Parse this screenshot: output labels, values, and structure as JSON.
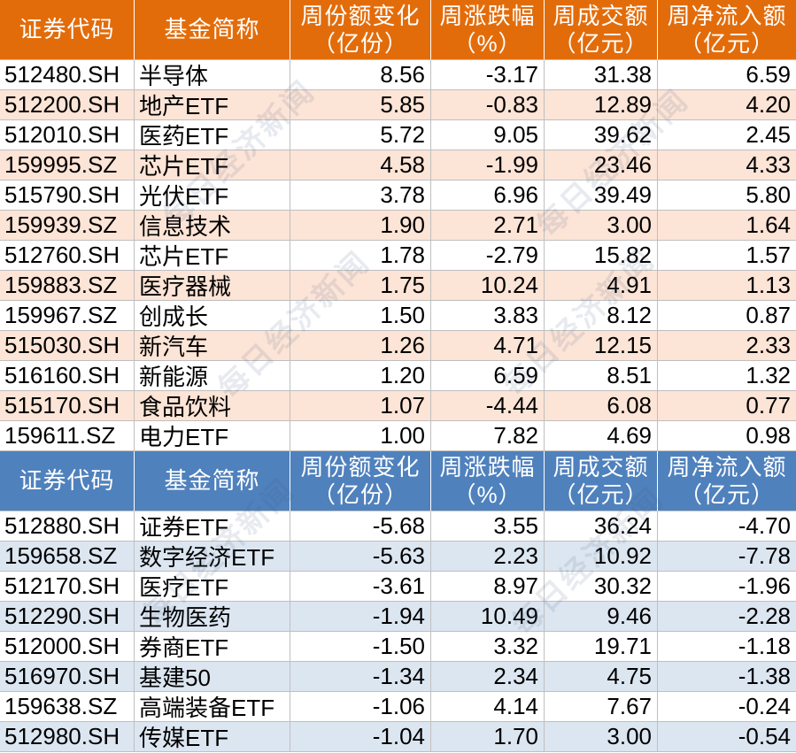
{
  "watermark": "每日经济新闻",
  "chart_data": [
    {
      "type": "table",
      "header_color": "#E36C0A",
      "stripe_color": "#FCE4D6",
      "columns": [
        {
          "line1": "证券代码"
        },
        {
          "line1": "基金简称"
        },
        {
          "line1": "周份额变化",
          "line2": "（亿份）"
        },
        {
          "line1": "周涨跌幅",
          "line2": "（%）"
        },
        {
          "line1": "周成交额",
          "line2": "（亿元）"
        },
        {
          "line1": "周净流入额",
          "line2": "（亿元）"
        }
      ],
      "rows": [
        {
          "code": "512480.SH",
          "name": "半导体",
          "share_change": "8.56",
          "pct_change": "-3.17",
          "turnover": "31.38",
          "net_inflow": "6.59"
        },
        {
          "code": "512200.SH",
          "name": "地产ETF",
          "share_change": "5.85",
          "pct_change": "-0.83",
          "turnover": "12.89",
          "net_inflow": "4.20"
        },
        {
          "code": "512010.SH",
          "name": "医药ETF",
          "share_change": "5.72",
          "pct_change": "9.05",
          "turnover": "39.62",
          "net_inflow": "2.45"
        },
        {
          "code": "159995.SZ",
          "name": "芯片ETF",
          "share_change": "4.58",
          "pct_change": "-1.99",
          "turnover": "23.46",
          "net_inflow": "4.33"
        },
        {
          "code": "515790.SH",
          "name": "光伏ETF",
          "share_change": "3.78",
          "pct_change": "6.96",
          "turnover": "39.49",
          "net_inflow": "5.80"
        },
        {
          "code": "159939.SZ",
          "name": "信息技术",
          "share_change": "1.90",
          "pct_change": "2.71",
          "turnover": "3.00",
          "net_inflow": "1.64"
        },
        {
          "code": "512760.SH",
          "name": "芯片ETF",
          "share_change": "1.78",
          "pct_change": "-2.79",
          "turnover": "15.82",
          "net_inflow": "1.57"
        },
        {
          "code": "159883.SZ",
          "name": "医疗器械",
          "share_change": "1.75",
          "pct_change": "10.24",
          "turnover": "4.91",
          "net_inflow": "1.13"
        },
        {
          "code": "159967.SZ",
          "name": "创成长",
          "share_change": "1.50",
          "pct_change": "3.83",
          "turnover": "8.12",
          "net_inflow": "0.87"
        },
        {
          "code": "515030.SH",
          "name": "新汽车",
          "share_change": "1.26",
          "pct_change": "4.71",
          "turnover": "12.15",
          "net_inflow": "2.33"
        },
        {
          "code": "516160.SH",
          "name": "新能源",
          "share_change": "1.20",
          "pct_change": "6.59",
          "turnover": "8.51",
          "net_inflow": "1.32"
        },
        {
          "code": "515170.SH",
          "name": "食品饮料",
          "share_change": "1.07",
          "pct_change": "-4.44",
          "turnover": "6.08",
          "net_inflow": "0.77"
        },
        {
          "code": "159611.SZ",
          "name": "电力ETF",
          "share_change": "1.00",
          "pct_change": "7.82",
          "turnover": "4.69",
          "net_inflow": "0.98"
        }
      ]
    },
    {
      "type": "table",
      "header_color": "#4F81BD",
      "stripe_color": "#DCE6F1",
      "columns": [
        {
          "line1": "证券代码"
        },
        {
          "line1": "基金简称"
        },
        {
          "line1": "周份额变化",
          "line2": "（亿份）"
        },
        {
          "line1": "周涨跌幅",
          "line2": "（%）"
        },
        {
          "line1": "周成交额",
          "line2": "（亿元）"
        },
        {
          "line1": "周净流入额",
          "line2": "（亿元）"
        }
      ],
      "rows": [
        {
          "code": "512880.SH",
          "name": "证券ETF",
          "share_change": "-5.68",
          "pct_change": "3.55",
          "turnover": "36.24",
          "net_inflow": "-4.70"
        },
        {
          "code": "159658.SZ",
          "name": "数字经济ETF",
          "share_change": "-5.63",
          "pct_change": "2.23",
          "turnover": "10.92",
          "net_inflow": "-7.78"
        },
        {
          "code": "512170.SH",
          "name": "医疗ETF",
          "share_change": "-3.61",
          "pct_change": "8.97",
          "turnover": "30.32",
          "net_inflow": "-1.96"
        },
        {
          "code": "512290.SH",
          "name": "生物医药",
          "share_change": "-1.94",
          "pct_change": "10.49",
          "turnover": "9.46",
          "net_inflow": "-2.28"
        },
        {
          "code": "512000.SH",
          "name": "券商ETF",
          "share_change": "-1.50",
          "pct_change": "3.32",
          "turnover": "19.71",
          "net_inflow": "-1.18"
        },
        {
          "code": "516970.SH",
          "name": "基建50",
          "share_change": "-1.34",
          "pct_change": "2.34",
          "turnover": "4.75",
          "net_inflow": "-1.38"
        },
        {
          "code": "159638.SZ",
          "name": "高端装备ETF",
          "share_change": "-1.06",
          "pct_change": "4.14",
          "turnover": "7.67",
          "net_inflow": "-0.24"
        },
        {
          "code": "512980.SH",
          "name": "传媒ETF",
          "share_change": "-1.04",
          "pct_change": "1.70",
          "turnover": "3.00",
          "net_inflow": "-0.54"
        }
      ]
    }
  ]
}
